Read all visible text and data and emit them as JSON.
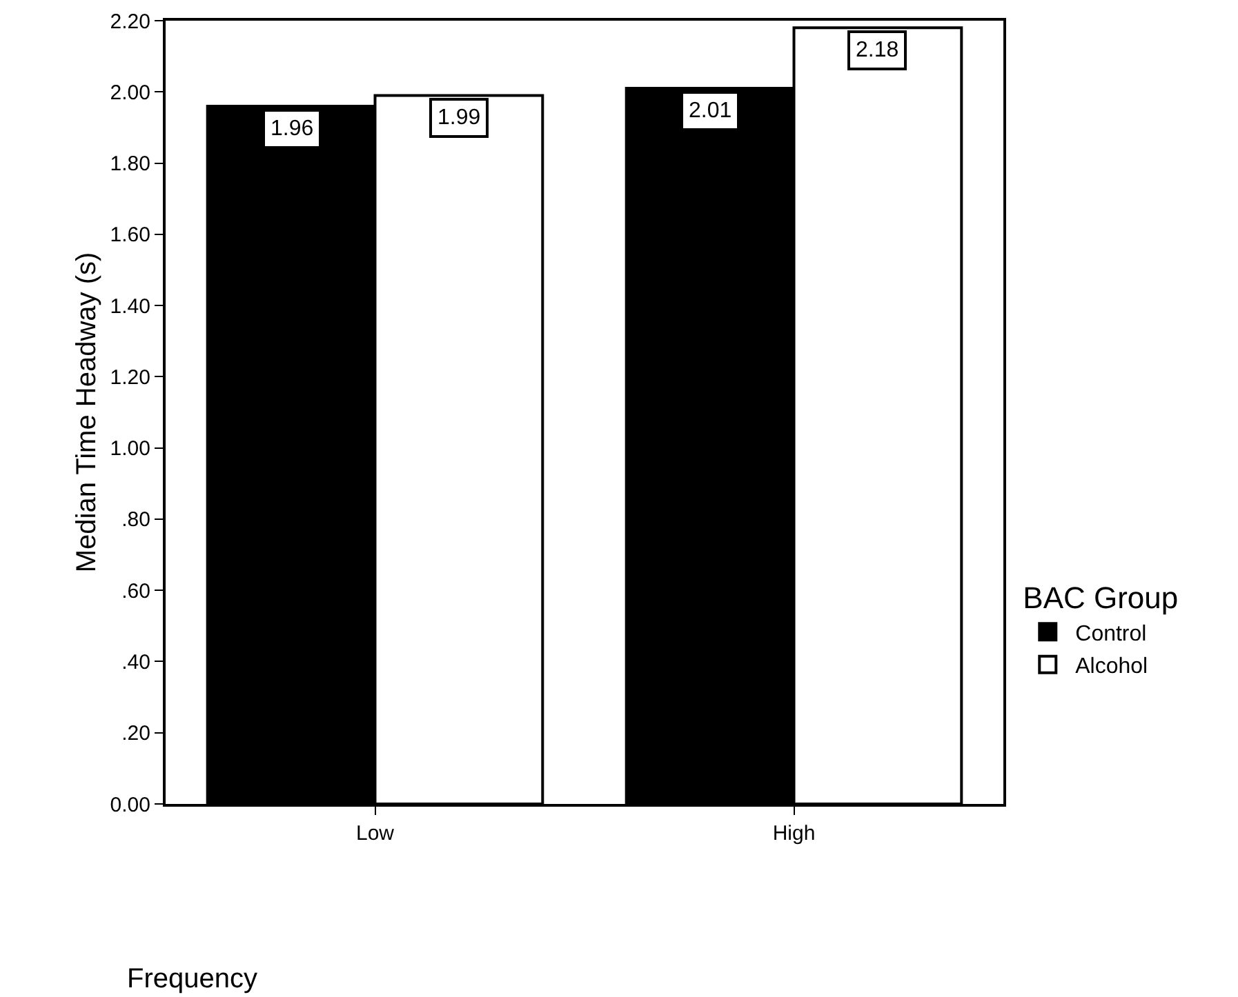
{
  "chart_data": {
    "type": "bar",
    "ylabel": "Median Time Headway (s)",
    "xlabel": "Frequency",
    "legend_title": "BAC Group",
    "categories": [
      "Low",
      "High"
    ],
    "series": [
      {
        "name": "Control",
        "color": "#000000",
        "values": [
          1.96,
          2.01
        ]
      },
      {
        "name": "Alcohol",
        "color": "#ffffff",
        "values": [
          1.99,
          2.18
        ]
      }
    ],
    "ylim": [
      0,
      2.2
    ],
    "yticks": [
      {
        "value": 0,
        "label": "0.00"
      },
      {
        "value": 0.2,
        "label": ".20"
      },
      {
        "value": 0.4,
        "label": ".40"
      },
      {
        "value": 0.6,
        "label": ".60"
      },
      {
        "value": 0.8,
        "label": ".80"
      },
      {
        "value": 1,
        "label": "1.00"
      },
      {
        "value": 1.2,
        "label": "1.20"
      },
      {
        "value": 1.4,
        "label": "1.40"
      },
      {
        "value": 1.6,
        "label": "1.60"
      },
      {
        "value": 1.8,
        "label": "1.80"
      },
      {
        "value": 2,
        "label": "2.00"
      },
      {
        "value": 2.2,
        "label": "2.20"
      }
    ],
    "data_labels": true,
    "grid": false,
    "legend": "right"
  }
}
